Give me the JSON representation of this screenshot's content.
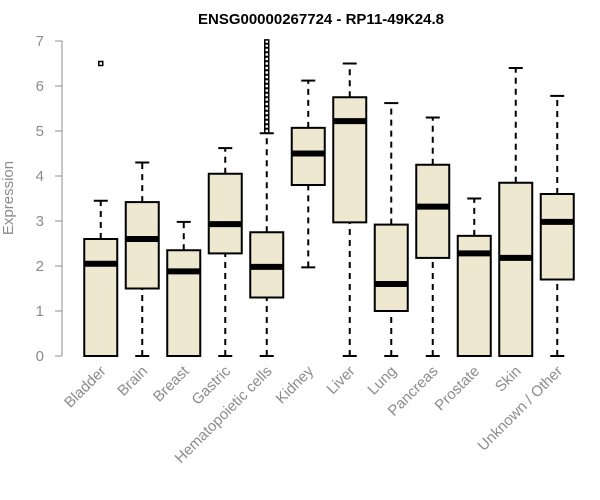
{
  "chart_data": {
    "type": "box",
    "title": "ENSG00000267724 - RP11-49K24.8",
    "xlabel": "",
    "ylabel": "Expression",
    "ylim": [
      0,
      7
    ],
    "yticks": [
      0,
      1,
      2,
      3,
      4,
      5,
      6,
      7
    ],
    "box_fill": "#efe8d0",
    "box_stroke": "#000000",
    "axis_color": "#8c8c8c",
    "categories": [
      "Bladder",
      "Brain",
      "Breast",
      "Gastric",
      "Hematopoietic cells",
      "Kidney",
      "Liver",
      "Lung",
      "Pancreas",
      "Prostate",
      "Skin",
      "Unknown / Other"
    ],
    "boxes": [
      {
        "name": "Bladder",
        "min": 0,
        "q1": 0,
        "median": 2.05,
        "q3": 2.6,
        "max": 3.45,
        "outliers": [
          6.5
        ]
      },
      {
        "name": "Brain",
        "min": 0,
        "q1": 1.5,
        "median": 2.6,
        "q3": 3.42,
        "max": 4.3,
        "outliers": []
      },
      {
        "name": "Breast",
        "min": 0,
        "q1": 0,
        "median": 1.88,
        "q3": 2.35,
        "max": 2.98,
        "outliers": []
      },
      {
        "name": "Gastric",
        "min": 0,
        "q1": 2.28,
        "median": 2.93,
        "q3": 4.05,
        "max": 4.62,
        "outliers": []
      },
      {
        "name": "Hematopoietic cells",
        "min": 0,
        "q1": 1.3,
        "median": 1.98,
        "q3": 2.75,
        "max": 4.95,
        "outliers": [
          5.0,
          5.1,
          5.2,
          5.3,
          5.4,
          5.5,
          5.6,
          5.7,
          5.8,
          5.9,
          6.0,
          6.1,
          6.2,
          6.3,
          6.4,
          6.5,
          6.6,
          6.7,
          6.8,
          6.9,
          6.98
        ]
      },
      {
        "name": "Kidney",
        "min": 1.97,
        "q1": 3.8,
        "median": 4.5,
        "q3": 5.07,
        "max": 6.12,
        "outliers": []
      },
      {
        "name": "Liver",
        "min": 0,
        "q1": 2.97,
        "median": 5.22,
        "q3": 5.75,
        "max": 6.5,
        "outliers": []
      },
      {
        "name": "Lung",
        "min": 0,
        "q1": 1.0,
        "median": 1.6,
        "q3": 2.92,
        "max": 5.62,
        "outliers": []
      },
      {
        "name": "Pancreas",
        "min": 0,
        "q1": 2.18,
        "median": 3.32,
        "q3": 4.25,
        "max": 5.3,
        "outliers": []
      },
      {
        "name": "Prostate",
        "min": 0,
        "q1": 0,
        "median": 2.28,
        "q3": 2.67,
        "max": 3.5,
        "outliers": []
      },
      {
        "name": "Skin",
        "min": 0,
        "q1": 0,
        "median": 2.18,
        "q3": 3.85,
        "max": 6.4,
        "outliers": []
      },
      {
        "name": "Unknown / Other",
        "min": 0,
        "q1": 1.7,
        "median": 2.98,
        "q3": 3.6,
        "max": 5.78,
        "outliers": []
      }
    ]
  }
}
